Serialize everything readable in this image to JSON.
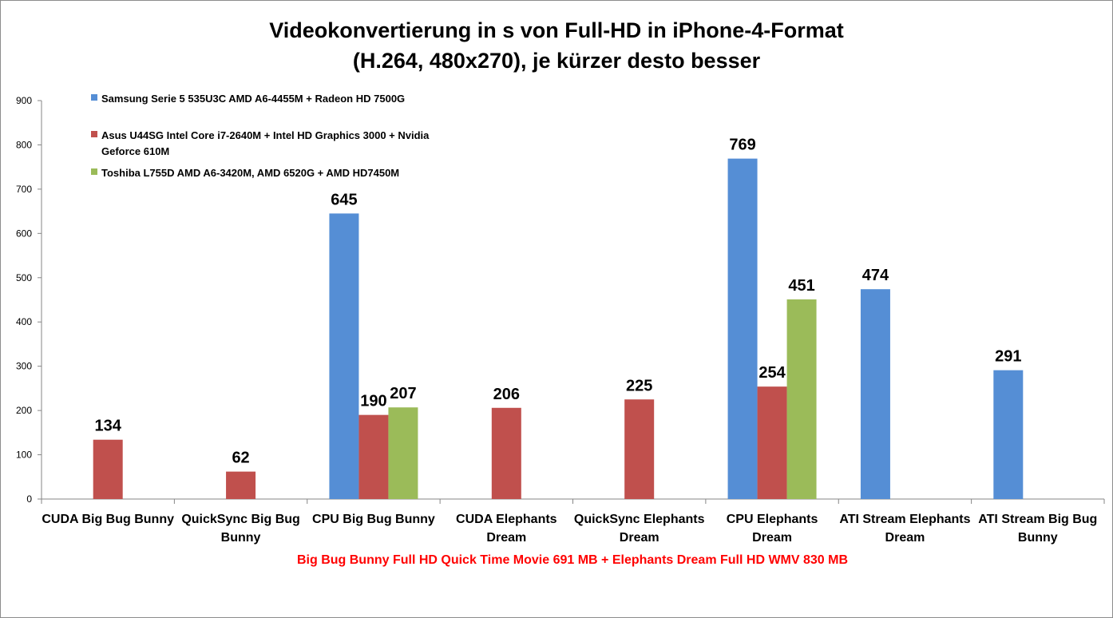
{
  "chart_data": {
    "type": "bar",
    "title": [
      "Videokonvertierung in s von Full-HD in iPhone-4-Format",
      "(H.264, 480x270), je kürzer desto besser"
    ],
    "xlabel": "Big Bug Bunny Full HD Quick Time Movie 691 MB + Elephants Dream Full HD WMV 830 MB",
    "xlabel_color": "#ff0000",
    "ylim": [
      0,
      900
    ],
    "yticks": [
      0,
      100,
      200,
      300,
      400,
      500,
      600,
      700,
      800,
      900
    ],
    "grid": false,
    "legend_position": "top-left",
    "categories": [
      [
        "CUDA Big Bug Bunny"
      ],
      [
        "QuickSync Big Bug",
        "Bunny"
      ],
      [
        "CPU Big Bug Bunny"
      ],
      [
        "CUDA Elephants",
        "Dream"
      ],
      [
        "QuickSync Elephants",
        "Dream"
      ],
      [
        "CPU Elephants",
        "Dream"
      ],
      [
        "ATI Stream Elephants",
        "Dream"
      ],
      [
        "ATI Stream Big Bug",
        "Bunny"
      ]
    ],
    "series": [
      {
        "name": [
          "Samsung Serie 5 535U3C AMD A6-4455M + Radeon HD 7500G"
        ],
        "color": "#558ed5",
        "values": [
          null,
          null,
          645,
          null,
          null,
          769,
          474,
          291
        ]
      },
      {
        "name": [
          "Asus U44SG Intel Core i7-2640M + Intel HD Graphics 3000 + Nvidia",
          "Geforce 610M"
        ],
        "color": "#c0504d",
        "values": [
          134,
          62,
          190,
          206,
          225,
          254,
          null,
          null
        ]
      },
      {
        "name": [
          "Toshiba L755D AMD A6-3420M, AMD 6520G + AMD HD7450M"
        ],
        "color": "#9bbb59",
        "values": [
          null,
          null,
          207,
          null,
          null,
          451,
          null,
          null
        ]
      }
    ]
  }
}
